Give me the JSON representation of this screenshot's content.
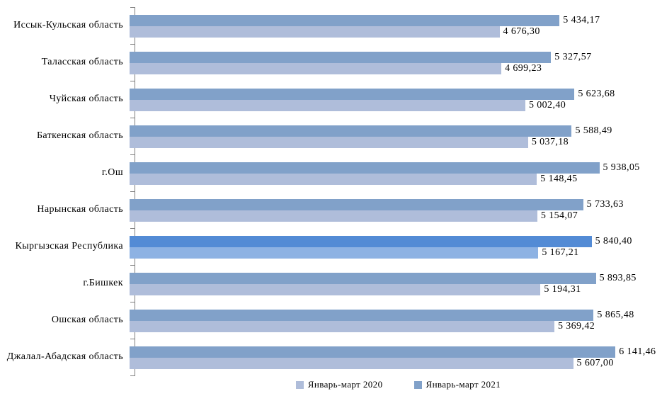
{
  "chart_data": {
    "type": "bar",
    "orientation": "horizontal",
    "title": "",
    "xlabel": "",
    "ylabel": "",
    "grid": false,
    "legend_position": "bottom",
    "xlim": [
      0,
      6730
    ],
    "categories": [
      "Иссык-Кульская область",
      "Таласская область",
      "Чуйская область",
      "Баткенская область",
      "г.Ош",
      "Нарынская область",
      "Кыргызская Республика",
      "г.Бишкек",
      "Ошская область",
      "Джалал-Абадская область"
    ],
    "highlight_category": "Кыргызская Республика",
    "series": [
      {
        "name": "Январь-март 2021",
        "color": "#81A1C9",
        "highlight_color": "#538BD5",
        "values": [
          5434.17,
          5327.57,
          5623.68,
          5588.49,
          5938.05,
          5733.63,
          5840.4,
          5893.85,
          5865.48,
          6141.46
        ],
        "labels": [
          "5 434,17",
          "5 327,57",
          "5 623,68",
          "5 588,49",
          "5 938,05",
          "5 733,63",
          "5 840,40",
          "5 893,85",
          "5 865,48",
          "6 141,46"
        ]
      },
      {
        "name": "Январь-март 2020",
        "color": "#AFBDDA",
        "highlight_color": "#8DB2E3",
        "values": [
          4676.3,
          4699.23,
          5002.4,
          5037.18,
          5148.45,
          5154.07,
          5167.21,
          5194.31,
          5369.42,
          5607.0
        ],
        "labels": [
          "4 676,30",
          "4 699,23",
          "5 002,40",
          "5 037,18",
          "5 148,45",
          "5 154,07",
          "5 167,21",
          "5 194,31",
          "5 369,42",
          "5 607,00"
        ]
      }
    ],
    "axis_color": "#7f7f7f"
  },
  "legend": {
    "items": [
      {
        "label": "Январь-март 2020",
        "color": "#AFBDDA"
      },
      {
        "label": "Январь-март 2021",
        "color": "#81A1C9"
      }
    ]
  }
}
